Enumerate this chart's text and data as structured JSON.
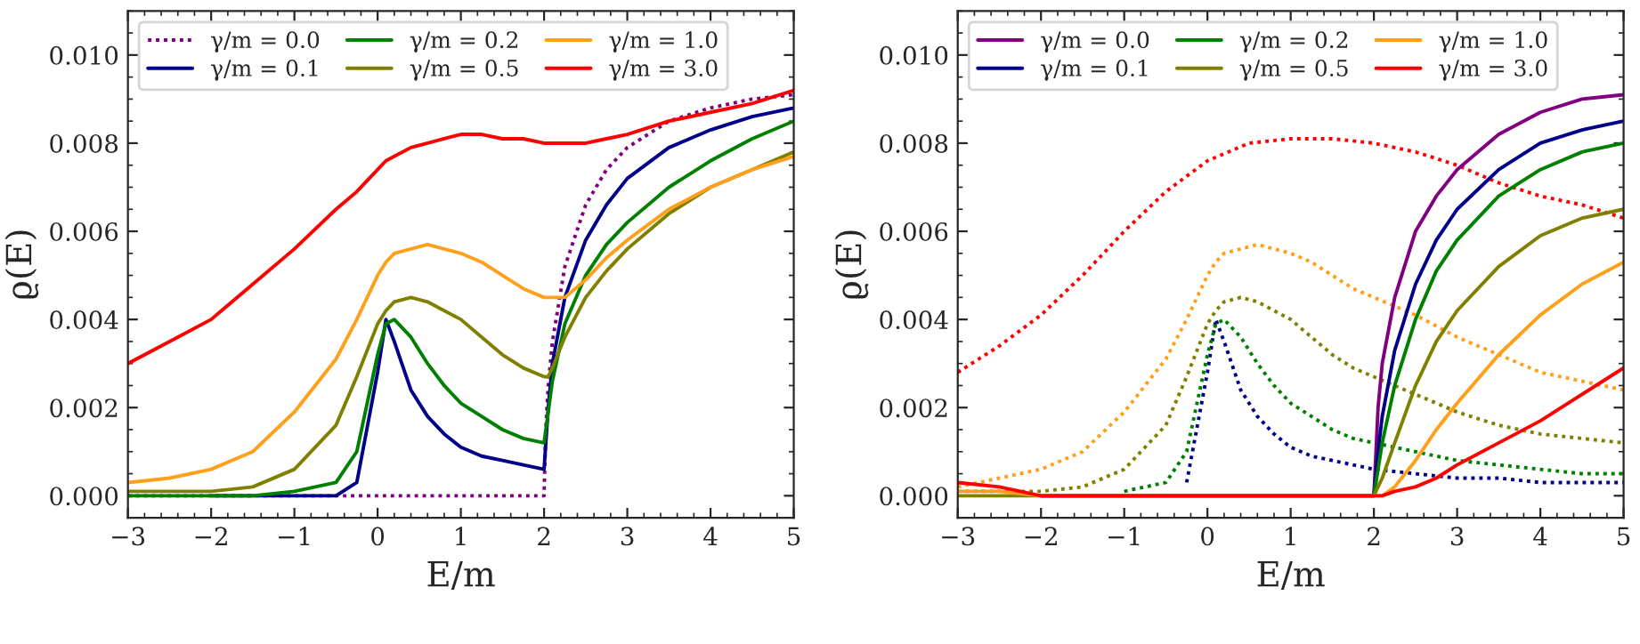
{
  "chart_data": [
    {
      "type": "line",
      "xlabel": "E/m",
      "ylabel": "ϱ(E)",
      "xlim": [
        -3,
        5
      ],
      "ylim": [
        -0.0005,
        0.011
      ],
      "xticks": [
        {
          "value": -3,
          "label": "−3"
        },
        {
          "value": -2,
          "label": "−2"
        },
        {
          "value": -1,
          "label": "−1"
        },
        0,
        1,
        2,
        3,
        4,
        5
      ],
      "yticks": [
        {
          "value": 0,
          "label": "0.000"
        },
        {
          "value": 0.002,
          "label": "0.002"
        },
        {
          "value": 0.004,
          "label": "0.004"
        },
        {
          "value": 0.006,
          "label": "0.006"
        },
        {
          "value": 0.008,
          "label": "0.008"
        },
        {
          "value": 0.01,
          "label": "0.010"
        }
      ],
      "grid": false,
      "legend": "top left",
      "marker": "none",
      "x": [
        -3,
        -2.5,
        -2,
        -1.5,
        -1,
        -0.5,
        -0.25,
        0,
        0.1,
        0.2,
        0.4,
        0.6,
        0.8,
        1,
        1.25,
        1.5,
        1.75,
        2,
        2.05,
        2.1,
        2.25,
        2.5,
        2.75,
        3,
        3.5,
        4,
        4.5,
        5
      ],
      "series": [
        {
          "name": "γ/m = 0.0",
          "color": "#800080",
          "line_style": "dotted",
          "x": [
            -3,
            2,
            2.02,
            2.05,
            2.1,
            2.25,
            2.5,
            2.75,
            3,
            3.5,
            4,
            4.5,
            5
          ],
          "values": [
            0,
            0,
            0.0015,
            0.0025,
            0.0035,
            0.0052,
            0.0066,
            0.0074,
            0.0079,
            0.0085,
            0.0088,
            0.009,
            0.0091
          ]
        },
        {
          "name": "γ/m = 0.1",
          "color": "#00008b",
          "line_style": "solid",
          "values": [
            null,
            null,
            0,
            0,
            0,
            0,
            0.0003,
            0.0028,
            0.004,
            0.0035,
            0.0024,
            0.0018,
            0.0014,
            0.0011,
            0.0009,
            0.0008,
            0.0007,
            0.0006,
            0.002,
            0.003,
            0.0045,
            0.0058,
            0.0066,
            0.0072,
            0.0079,
            0.0083,
            0.0086,
            0.0088
          ]
        },
        {
          "name": "γ/m = 0.2",
          "color": "#008000",
          "line_style": "solid",
          "values": [
            0,
            0,
            0,
            0,
            0.0001,
            0.0003,
            0.001,
            0.0032,
            0.0039,
            0.004,
            0.0036,
            0.003,
            0.0025,
            0.0021,
            0.0018,
            0.0015,
            0.0013,
            0.0012,
            0.0019,
            0.0026,
            0.0039,
            0.005,
            0.0057,
            0.0062,
            0.007,
            0.0076,
            0.0081,
            0.0085
          ]
        },
        {
          "name": "γ/m = 0.5",
          "color": "#808000",
          "line_style": "solid",
          "values": [
            0.0001,
            0.0001,
            0.0001,
            0.0002,
            0.0006,
            0.0016,
            0.0027,
            0.0039,
            0.0042,
            0.0044,
            0.0045,
            0.0044,
            0.0042,
            0.004,
            0.0036,
            0.0032,
            0.0029,
            0.0027,
            0.0027,
            0.0029,
            0.0036,
            0.0045,
            0.0051,
            0.0056,
            0.0064,
            0.007,
            0.0074,
            0.0078
          ]
        },
        {
          "name": "γ/m = 1.0",
          "color": "#ff9f1a",
          "line_style": "solid",
          "values": [
            0.0003,
            0.0004,
            0.0006,
            0.001,
            0.0019,
            0.0031,
            0.004,
            0.005,
            0.0053,
            0.0055,
            0.0056,
            0.0057,
            0.0056,
            0.0055,
            0.0053,
            0.005,
            0.0047,
            0.0045,
            0.0045,
            0.0045,
            0.0045,
            0.0049,
            0.0054,
            0.0058,
            0.0065,
            0.007,
            0.0074,
            0.0077
          ]
        },
        {
          "name": "γ/m = 3.0",
          "color": "#ff0000",
          "line_style": "solid",
          "values": [
            0.003,
            0.0035,
            0.004,
            0.0048,
            0.0056,
            0.0065,
            0.0069,
            0.0074,
            0.0076,
            0.0077,
            0.0079,
            0.008,
            0.0081,
            0.0082,
            0.0082,
            0.0081,
            0.0081,
            0.008,
            0.008,
            0.008,
            0.008,
            0.008,
            0.0081,
            0.0082,
            0.0085,
            0.0087,
            0.0089,
            0.0092
          ]
        }
      ]
    },
    {
      "type": "line",
      "xlabel": "E/m",
      "ylabel": "ϱ(E)",
      "xlim": [
        -3,
        5
      ],
      "ylim": [
        -0.0005,
        0.011
      ],
      "xticks": [
        {
          "value": -3,
          "label": "−3"
        },
        {
          "value": -2,
          "label": "−2"
        },
        {
          "value": -1,
          "label": "−1"
        },
        0,
        1,
        2,
        3,
        4,
        5
      ],
      "yticks": [
        {
          "value": 0,
          "label": "0.000"
        },
        {
          "value": 0.002,
          "label": "0.002"
        },
        {
          "value": 0.004,
          "label": "0.004"
        },
        {
          "value": 0.006,
          "label": "0.006"
        },
        {
          "value": 0.008,
          "label": "0.008"
        },
        {
          "value": 0.01,
          "label": "0.010"
        }
      ],
      "grid": false,
      "legend": "top left",
      "marker": "none",
      "x": [
        -3,
        -2.5,
        -2,
        2,
        2.05,
        2.1,
        2.25,
        2.5,
        2.75,
        3,
        3.5,
        4,
        4.5,
        5
      ],
      "series": [
        {
          "color": "#00008b",
          "line_style": "dotted",
          "x": [
            -0.25,
            0,
            0.1,
            0.2,
            0.4,
            0.6,
            0.8,
            1,
            1.25,
            1.5,
            1.75,
            2,
            2.5,
            3,
            3.5,
            4,
            4.5,
            5
          ],
          "values": [
            0.0003,
            0.0028,
            0.004,
            0.0035,
            0.0024,
            0.0018,
            0.0014,
            0.0011,
            0.0009,
            0.0008,
            0.0007,
            0.0006,
            0.0005,
            0.0004,
            0.0004,
            0.0003,
            0.0003,
            0.0003
          ]
        },
        {
          "color": "#008000",
          "line_style": "dotted",
          "x": [
            -1,
            -0.5,
            -0.25,
            0,
            0.1,
            0.2,
            0.4,
            0.6,
            0.8,
            1,
            1.25,
            1.5,
            1.75,
            2,
            2.5,
            3,
            3.5,
            4,
            4.5,
            5
          ],
          "values": [
            0.0001,
            0.0003,
            0.001,
            0.0032,
            0.0039,
            0.004,
            0.0036,
            0.003,
            0.0025,
            0.0021,
            0.0018,
            0.0015,
            0.0013,
            0.0012,
            0.001,
            0.0008,
            0.0007,
            0.0006,
            0.0005,
            0.0005
          ]
        },
        {
          "color": "#808000",
          "line_style": "dotted",
          "x": [
            -3,
            -2.5,
            -2,
            -1.5,
            -1,
            -0.5,
            -0.25,
            0,
            0.1,
            0.2,
            0.4,
            0.6,
            0.8,
            1,
            1.25,
            1.5,
            1.75,
            2,
            2.5,
            3,
            3.5,
            4,
            4.5,
            5
          ],
          "values": [
            0.0001,
            0.0001,
            0.0001,
            0.0002,
            0.0006,
            0.0016,
            0.0027,
            0.0039,
            0.0042,
            0.0044,
            0.0045,
            0.0044,
            0.0042,
            0.004,
            0.0036,
            0.0032,
            0.0029,
            0.0027,
            0.0023,
            0.0019,
            0.0016,
            0.0014,
            0.0013,
            0.0012
          ]
        },
        {
          "color": "#ff9f1a",
          "line_style": "dotted",
          "x": [
            -3,
            -2.5,
            -2,
            -1.5,
            -1,
            -0.5,
            -0.25,
            0,
            0.1,
            0.2,
            0.4,
            0.6,
            0.8,
            1,
            1.25,
            1.5,
            1.75,
            2,
            2.5,
            3,
            3.5,
            4,
            4.5,
            5
          ],
          "values": [
            0.0002,
            0.0004,
            0.0006,
            0.001,
            0.0019,
            0.0031,
            0.004,
            0.005,
            0.0053,
            0.0055,
            0.0056,
            0.0057,
            0.0056,
            0.0055,
            0.0053,
            0.005,
            0.0047,
            0.0045,
            0.0041,
            0.0036,
            0.0032,
            0.0028,
            0.0026,
            0.0024
          ]
        },
        {
          "color": "#ff0000",
          "line_style": "dotted",
          "x": [
            -3,
            -2.5,
            -2,
            -1.5,
            -1,
            -0.5,
            0,
            0.5,
            1,
            1.5,
            2,
            2.5,
            3,
            3.5,
            4,
            4.5,
            5
          ],
          "values": [
            0.0028,
            0.0034,
            0.0041,
            0.005,
            0.006,
            0.0069,
            0.0076,
            0.008,
            0.0081,
            0.0081,
            0.008,
            0.0078,
            0.0075,
            0.0071,
            0.0068,
            0.0066,
            0.0063
          ]
        },
        {
          "name": "γ/m = 0.0",
          "color": "#800080",
          "line_style": "solid",
          "x": [
            -2,
            2,
            2.05,
            2.1,
            2.25,
            2.5,
            2.75,
            3,
            3.5,
            4,
            4.5,
            5
          ],
          "values": [
            0,
            0,
            0.002,
            0.003,
            0.0045,
            0.006,
            0.0068,
            0.0074,
            0.0082,
            0.0087,
            0.009,
            0.0091
          ]
        },
        {
          "name": "γ/m = 0.1",
          "color": "#00008b",
          "line_style": "solid",
          "x": [
            -2,
            2,
            2.05,
            2.1,
            2.25,
            2.5,
            2.75,
            3,
            3.5,
            4,
            4.5,
            5
          ],
          "values": [
            0,
            0,
            0.001,
            0.0018,
            0.0033,
            0.0048,
            0.0058,
            0.0065,
            0.0074,
            0.008,
            0.0083,
            0.0085
          ]
        },
        {
          "name": "γ/m = 0.2",
          "color": "#008000",
          "line_style": "solid",
          "x": [
            -2,
            2,
            2.05,
            2.1,
            2.25,
            2.5,
            2.75,
            3,
            3.5,
            4,
            4.5,
            5
          ],
          "values": [
            0,
            0,
            0.0006,
            0.0012,
            0.0025,
            0.004,
            0.0051,
            0.0058,
            0.0068,
            0.0074,
            0.0078,
            0.008
          ]
        },
        {
          "name": "γ/m = 0.5",
          "color": "#808000",
          "line_style": "solid",
          "values": [
            0,
            0,
            0,
            0,
            0.0002,
            0.0004,
            0.0012,
            0.0025,
            0.0035,
            0.0042,
            0.0052,
            0.0059,
            0.0063,
            0.0065
          ]
        },
        {
          "name": "γ/m = 1.0",
          "color": "#ff9f1a",
          "line_style": "solid",
          "values": [
            0.0001,
            0.0001,
            0,
            0,
            0,
            0,
            0.0002,
            0.0008,
            0.0015,
            0.0021,
            0.0032,
            0.0041,
            0.0048,
            0.0053
          ]
        },
        {
          "name": "γ/m = 3.0",
          "color": "#ff0000",
          "line_style": "solid",
          "values": [
            0.0003,
            0.0002,
            0,
            0,
            0,
            0,
            0.0001,
            0.0002,
            0.0004,
            0.0007,
            0.0012,
            0.0017,
            0.0023,
            0.0029
          ]
        }
      ]
    }
  ]
}
